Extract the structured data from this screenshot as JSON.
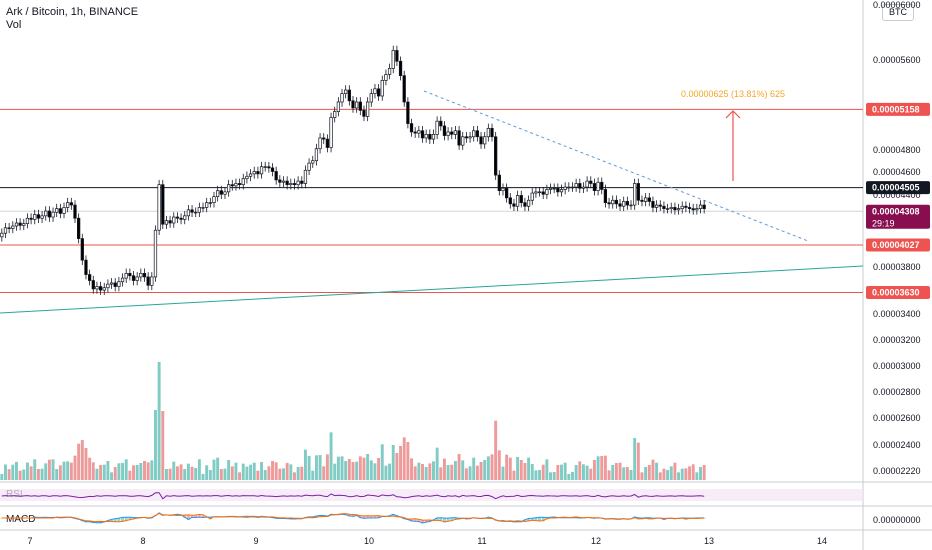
{
  "header": {
    "symbol": "Ark / Bitcoin, 1h, BINANCE",
    "volume_label": "Vol",
    "currency": "BTC"
  },
  "colors": {
    "up": "#26a69a",
    "down": "#000000",
    "vol_up": "#80cbc4",
    "vol_down": "#ef9a9a",
    "level_line": "#ef5350",
    "trend_teal": "#26a69a",
    "trend_dash": "#5b9bd5",
    "projection": "#f5a623",
    "arrow": "#ef5350",
    "rsi": "#7b1fa2",
    "macd": "#2196f3",
    "signal": "#ff6d00"
  },
  "panes": {
    "rsi_label": "RSI",
    "macd_label": "MACD"
  },
  "chart_data": {
    "type": "candlestick",
    "symbol": "Ark / Bitcoin",
    "interval": "1h",
    "exchange": "BINANCE",
    "x_tick_labels": [
      "7",
      "8",
      "9",
      "10",
      "11",
      "12",
      "13",
      "14"
    ],
    "y_tick_labels": [
      "0.00006000",
      "0.00005600",
      "0.00004800",
      "0.00004600",
      "0.00004400",
      "0.00003800",
      "0.00003400",
      "0.00003200",
      "0.00003000",
      "0.00002800",
      "0.00002600",
      "0.00002400",
      "0.00002220"
    ],
    "macd_tick_label": "0.00000000",
    "price_badges": [
      {
        "value": "0.00005158",
        "style": "level"
      },
      {
        "value": "0.00004505",
        "style": "black"
      },
      {
        "value": "0.00004308",
        "style": "current",
        "countdown": "29:19"
      },
      {
        "value": "0.00004027",
        "style": "level"
      },
      {
        "value": "0.00003630",
        "style": "level"
      }
    ],
    "horizontal_levels": [
      5.158e-05,
      4.505e-05,
      4.308e-05,
      4.027e-05,
      3.63e-05
    ],
    "projection_label": "0.00000625 (13.81%) 625",
    "series": [
      {
        "name": "price",
        "values": [
          41250,
          41700,
          41650,
          41850,
          42100,
          41900,
          42050,
          42500,
          42400,
          42800,
          42500,
          42700,
          43100,
          42600,
          43000,
          43300,
          42900,
          43400,
          43800,
          43600,
          42500,
          40800,
          39000,
          37800,
          37300,
          36600,
          36800,
          36500,
          36700,
          37000,
          37100,
          36800,
          37200,
          37500,
          37900,
          37700,
          37300,
          37600,
          37900,
          37600,
          36900,
          37600,
          41500,
          45300,
          42000,
          42300,
          42100,
          42600,
          42500,
          42400,
          42700,
          43200,
          43000,
          43000,
          43400,
          43400,
          43800,
          43800,
          44300,
          44800,
          44500,
          44700,
          45300,
          45200,
          45400,
          45300,
          45800,
          46000,
          46200,
          46400,
          46200,
          46800,
          46800,
          46700,
          46400,
          45700,
          45500,
          45600,
          45300,
          45400,
          45300,
          45600,
          45400,
          46500,
          47100,
          47300,
          48300,
          49200,
          49100,
          48400,
          50900,
          51400,
          52200,
          52900,
          53200,
          52300,
          51700,
          52200,
          51500,
          51000,
          52200,
          52900,
          53300,
          52700,
          54000,
          54500,
          55000,
          56500,
          55600,
          54400,
          52200,
          50400,
          49700,
          49600,
          49800,
          49200,
          49500,
          49100,
          49500,
          50600,
          50200,
          49400,
          49700,
          49500,
          49800,
          48600,
          49300,
          49200,
          49300,
          49800,
          49300,
          48700,
          49300,
          50000,
          49300,
          46100,
          44800,
          45000,
          44200,
          43700,
          43500,
          44400,
          43800,
          43500,
          44000,
          44600,
          44700,
          44700,
          44500,
          44900,
          45000,
          45000,
          44700,
          44900,
          45100,
          45100,
          45100,
          45400,
          45000,
          45100,
          45600,
          45400,
          44800,
          45500,
          44900,
          43800,
          43700,
          44000,
          43700,
          43500,
          43900,
          43600,
          43600,
          45400,
          44000,
          43900,
          44200,
          43900,
          43400,
          43600,
          43500,
          43300,
          43300,
          43400,
          43200,
          43300,
          43500,
          43400,
          43300,
          43200,
          43300,
          43600,
          43300
        ]
      }
    ]
  }
}
